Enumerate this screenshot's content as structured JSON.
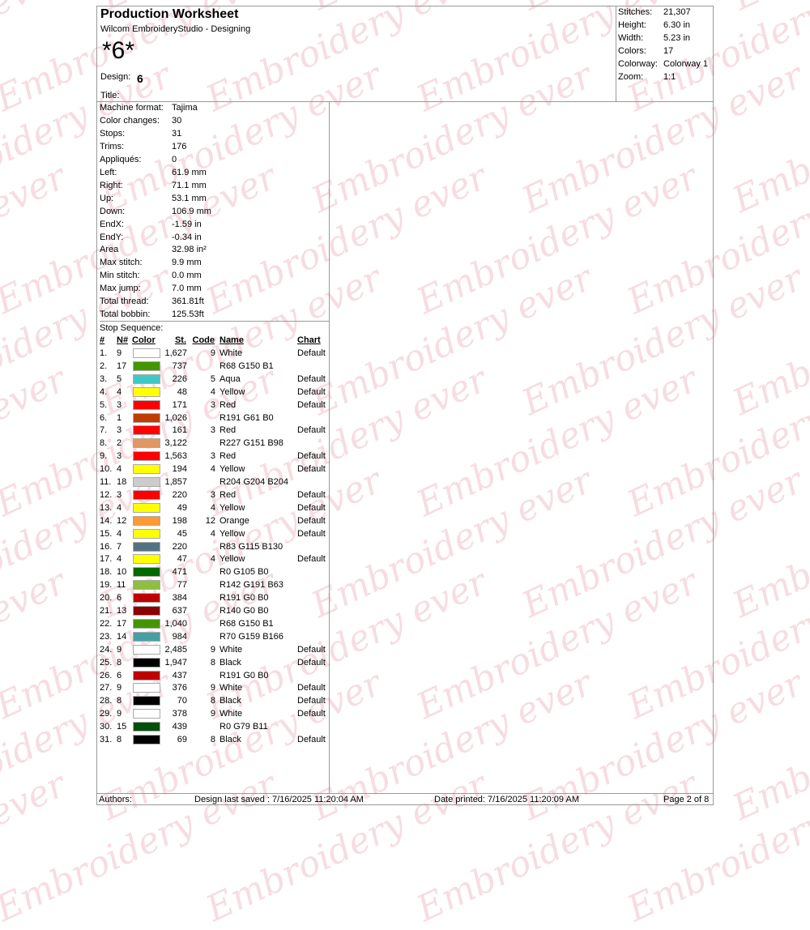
{
  "watermark": "Embroidery ever",
  "header": {
    "title": "Production Worksheet",
    "subtitle": "Wilcom EmbroideryStudio - Designing",
    "design_big": "*6*",
    "design_label": "Design:",
    "design_value": "6",
    "title_label": "Title:"
  },
  "info": [
    [
      "Stitches:",
      "21,307"
    ],
    [
      "Height:",
      "6.30 in"
    ],
    [
      "Width:",
      "5.23 in"
    ],
    [
      "Colors:",
      "17"
    ],
    [
      "Colorway:",
      "Colorway 1"
    ],
    [
      "Zoom:",
      "1:1"
    ]
  ],
  "stats": [
    [
      "Machine format:",
      "Tajima"
    ],
    [
      "Color changes:",
      "30"
    ],
    [
      "Stops:",
      "31"
    ],
    [
      "Trims:",
      "176"
    ],
    [
      "Appliqués:",
      "0"
    ],
    [
      "Left:",
      "61.9 mm"
    ],
    [
      "Right:",
      "71.1 mm"
    ],
    [
      "Up:",
      "53.1 mm"
    ],
    [
      "Down:",
      "106.9 mm"
    ],
    [
      "EndX:",
      "-1.59 in"
    ],
    [
      "EndY:",
      "-0.34 in"
    ],
    [
      "Area",
      "32.98 in²"
    ],
    [
      "Max stitch:",
      "9.9 mm"
    ],
    [
      "Min stitch:",
      "0.0 mm"
    ],
    [
      "Max jump:",
      "7.0 mm"
    ],
    [
      "Total thread:",
      "361.81ft"
    ],
    [
      "Total bobbin:",
      "125.53ft"
    ]
  ],
  "stop_sequence": {
    "label": "Stop Sequence:",
    "headers": [
      "#",
      "N#",
      "Color",
      "St.",
      "Code",
      "Name",
      "Chart"
    ],
    "rows": [
      [
        "1.",
        "9",
        "#ffffff",
        "1,627",
        "9",
        "White",
        "Default"
      ],
      [
        "2.",
        "17",
        "#449601",
        "737",
        "",
        "R68 G150 B1",
        ""
      ],
      [
        "3.",
        "5",
        "#40c8c8",
        "226",
        "5",
        "Aqua",
        "Default"
      ],
      [
        "4.",
        "4",
        "#ffff00",
        "48",
        "4",
        "Yellow",
        "Default"
      ],
      [
        "5.",
        "3",
        "#ff0000",
        "171",
        "3",
        "Red",
        "Default"
      ],
      [
        "6.",
        "1",
        "#bf3d00",
        "1,026",
        "",
        "R191 G61 B0",
        ""
      ],
      [
        "7.",
        "3",
        "#ff0000",
        "161",
        "3",
        "Red",
        "Default"
      ],
      [
        "8.",
        "2",
        "#e39762",
        "3,122",
        "",
        "R227 G151 B98",
        ""
      ],
      [
        "9.",
        "3",
        "#ff0000",
        "1,563",
        "3",
        "Red",
        "Default"
      ],
      [
        "10.",
        "4",
        "#ffff00",
        "194",
        "4",
        "Yellow",
        "Default"
      ],
      [
        "11.",
        "18",
        "#cccccc",
        "1,857",
        "",
        "R204 G204 B204",
        ""
      ],
      [
        "12.",
        "3",
        "#ff0000",
        "220",
        "3",
        "Red",
        "Default"
      ],
      [
        "13.",
        "4",
        "#ffff00",
        "49",
        "4",
        "Yellow",
        "Default"
      ],
      [
        "14.",
        "12",
        "#ff9933",
        "198",
        "12",
        "Orange",
        "Default"
      ],
      [
        "15.",
        "4",
        "#ffff00",
        "45",
        "4",
        "Yellow",
        "Default"
      ],
      [
        "16.",
        "7",
        "#537382",
        "220",
        "",
        "R83 G115 B130",
        ""
      ],
      [
        "17.",
        "4",
        "#ffff00",
        "47",
        "4",
        "Yellow",
        "Default"
      ],
      [
        "18.",
        "10",
        "#006900",
        "471",
        "",
        "R0 G105 B0",
        ""
      ],
      [
        "19.",
        "11",
        "#8ebf3f",
        "77",
        "",
        "R142 G191 B63",
        ""
      ],
      [
        "20.",
        "6",
        "#bf0000",
        "384",
        "",
        "R191 G0 B0",
        ""
      ],
      [
        "21.",
        "13",
        "#8c0000",
        "637",
        "",
        "R140 G0 B0",
        ""
      ],
      [
        "22.",
        "17",
        "#449601",
        "1,040",
        "",
        "R68 G150 B1",
        ""
      ],
      [
        "23.",
        "14",
        "#469fa6",
        "984",
        "",
        "R70 G159 B166",
        ""
      ],
      [
        "24.",
        "9",
        "#ffffff",
        "2,485",
        "9",
        "White",
        "Default"
      ],
      [
        "25.",
        "8",
        "#000000",
        "1,947",
        "8",
        "Black",
        "Default"
      ],
      [
        "26.",
        "6",
        "#bf0000",
        "437",
        "",
        "R191 G0 B0",
        ""
      ],
      [
        "27.",
        "9",
        "#ffffff",
        "376",
        "9",
        "White",
        "Default"
      ],
      [
        "28.",
        "8",
        "#000000",
        "70",
        "8",
        "Black",
        "Default"
      ],
      [
        "29.",
        "9",
        "#ffffff",
        "378",
        "9",
        "White",
        "Default"
      ],
      [
        "30.",
        "15",
        "#004f0b",
        "439",
        "",
        "R0 G79 B11",
        ""
      ],
      [
        "31.",
        "8",
        "#000000",
        "69",
        "8",
        "Black",
        "Default"
      ]
    ]
  },
  "footer": {
    "authors": "Authors:",
    "saved": "Design last saved : 7/16/2025 11:20:04 AM",
    "printed": "Date printed: 7/16/2025 11:20:09 AM",
    "page": "Page 2 of 8"
  }
}
